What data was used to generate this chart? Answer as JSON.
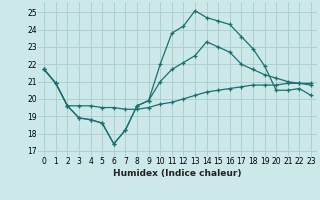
{
  "xlabel": "Humidex (Indice chaleur)",
  "background_color": "#cce8e8",
  "grid_color": "#aacccc",
  "line_color": "#1a7070",
  "xlim": [
    -0.5,
    23.5
  ],
  "ylim": [
    16.7,
    25.6
  ],
  "xticks": [
    0,
    1,
    2,
    3,
    4,
    5,
    6,
    7,
    8,
    9,
    10,
    11,
    12,
    13,
    14,
    15,
    16,
    17,
    18,
    19,
    20,
    21,
    22,
    23
  ],
  "yticks": [
    17,
    18,
    19,
    20,
    21,
    22,
    23,
    24,
    25
  ],
  "line1_x": [
    0,
    1,
    2,
    3,
    4,
    5,
    6,
    7,
    8,
    9,
    10,
    11,
    12,
    13,
    14,
    15,
    16,
    17,
    18,
    19,
    20,
    21,
    22,
    23
  ],
  "line1_y": [
    21.7,
    20.9,
    19.6,
    19.6,
    19.6,
    19.5,
    19.5,
    19.4,
    19.4,
    19.5,
    19.7,
    19.8,
    20.0,
    20.2,
    20.4,
    20.5,
    20.6,
    20.7,
    20.8,
    20.8,
    20.8,
    20.9,
    20.9,
    20.9
  ],
  "line2_x": [
    0,
    1,
    2,
    3,
    4,
    5,
    6,
    7,
    8,
    9,
    10,
    11,
    12,
    13,
    14,
    15,
    16,
    17,
    18,
    19,
    20,
    21,
    22,
    23
  ],
  "line2_y": [
    21.7,
    20.9,
    19.6,
    18.9,
    18.8,
    18.6,
    17.4,
    18.2,
    19.6,
    19.9,
    21.0,
    21.7,
    22.1,
    22.5,
    23.3,
    23.0,
    22.7,
    22.0,
    21.7,
    21.4,
    21.2,
    21.0,
    20.9,
    20.8
  ],
  "line3_x": [
    0,
    1,
    2,
    3,
    4,
    5,
    6,
    7,
    8,
    9,
    10,
    11,
    12,
    13,
    14,
    15,
    16,
    17,
    18,
    19,
    20,
    21,
    22,
    23
  ],
  "line3_y": [
    21.7,
    20.9,
    19.6,
    18.9,
    18.8,
    18.6,
    17.4,
    18.2,
    19.6,
    19.9,
    22.0,
    23.8,
    24.2,
    25.1,
    24.7,
    24.5,
    24.3,
    23.6,
    22.9,
    21.9,
    20.5,
    20.5,
    20.6,
    20.2
  ],
  "marker": "+",
  "markersize": 3,
  "linewidth": 0.9
}
